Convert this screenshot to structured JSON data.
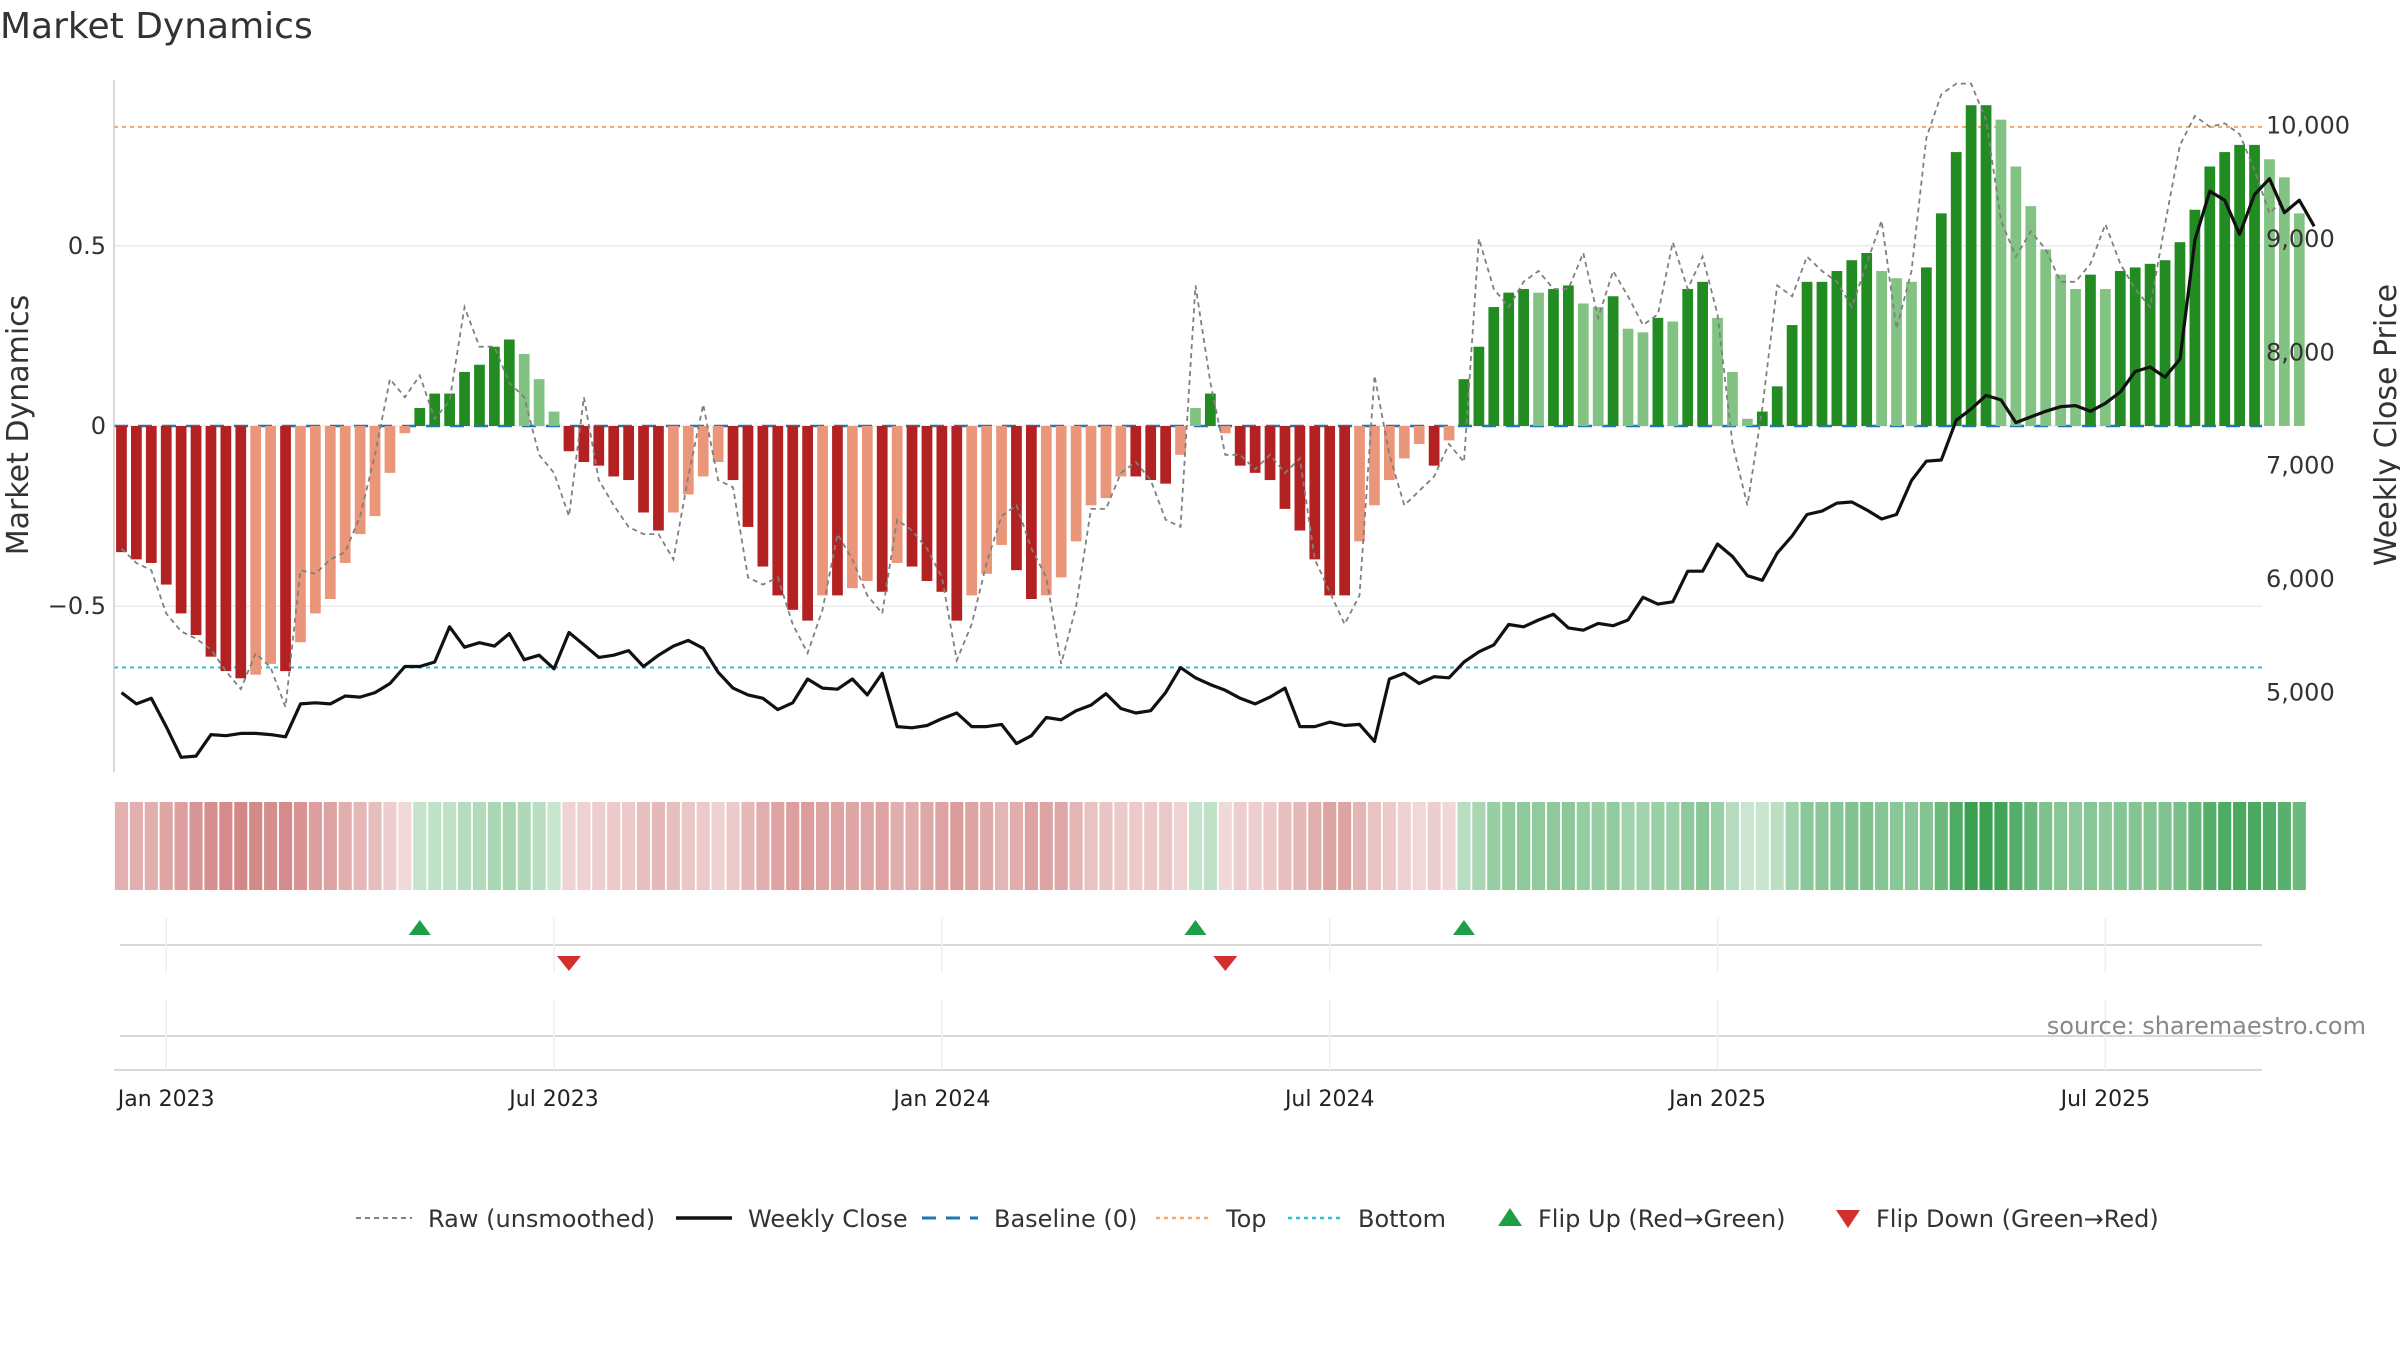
{
  "chart_data": {
    "type": "bar",
    "title": "Market Dynamics",
    "ylabel_left": "Market Dynamics",
    "ylabel_right": "Weekly Close Price",
    "source": "source: sharemaestro.com",
    "y_left": {
      "range": [
        -0.96,
        0.96
      ],
      "ticks": [
        {
          "v": 0.5,
          "label": "0.5"
        },
        {
          "v": 0,
          "label": "0"
        },
        {
          "v": -0.5,
          "label": "−0.5"
        }
      ]
    },
    "y_right": {
      "range": [
        4300,
        10400
      ],
      "ticks": [
        {
          "v": 10000,
          "label": "10,000"
        },
        {
          "v": 9000,
          "label": "9,000"
        },
        {
          "v": 8000,
          "label": "8,000"
        },
        {
          "v": 7000,
          "label": "7,000"
        },
        {
          "v": 6000,
          "label": "6,000"
        },
        {
          "v": 5000,
          "label": "5,000"
        }
      ]
    },
    "x_ticks": [
      {
        "week": 3,
        "label": "Jan 2023"
      },
      {
        "week": 29,
        "label": "Jul 2023"
      },
      {
        "week": 55,
        "label": "Jan 2024"
      },
      {
        "week": 81,
        "label": "Jul 2024"
      },
      {
        "week": 107,
        "label": "Jan 2025"
      },
      {
        "week": 133,
        "label": "Jul 2025"
      }
    ],
    "x_range": [
      -0.5,
      143.5
    ],
    "reference_lines": {
      "top": 0.83,
      "bottom": -0.67,
      "baseline": 0
    },
    "smoothed": [
      -0.35,
      -0.37,
      -0.38,
      -0.44,
      -0.52,
      -0.58,
      -0.64,
      -0.68,
      -0.7,
      -0.69,
      -0.66,
      -0.68,
      -0.6,
      -0.52,
      -0.48,
      -0.38,
      -0.3,
      -0.25,
      -0.13,
      -0.02,
      0.05,
      0.09,
      0.09,
      0.15,
      0.17,
      0.22,
      0.24,
      0.2,
      0.13,
      0.04,
      -0.07,
      -0.1,
      -0.11,
      -0.14,
      -0.15,
      -0.24,
      -0.29,
      -0.24,
      -0.19,
      -0.14,
      -0.1,
      -0.15,
      -0.28,
      -0.39,
      -0.47,
      -0.51,
      -0.54,
      -0.47,
      -0.47,
      -0.45,
      -0.43,
      -0.46,
      -0.38,
      -0.39,
      -0.43,
      -0.46,
      -0.54,
      -0.47,
      -0.41,
      -0.33,
      -0.4,
      -0.48,
      -0.47,
      -0.42,
      -0.32,
      -0.22,
      -0.2,
      -0.14,
      -0.14,
      -0.15,
      -0.16,
      -0.08,
      0.05,
      0.09,
      -0.02,
      -0.11,
      -0.13,
      -0.15,
      -0.23,
      -0.29,
      -0.37,
      -0.47,
      -0.47,
      -0.32,
      -0.22,
      -0.15,
      -0.09,
      -0.05,
      -0.11,
      -0.04,
      0.13,
      0.22,
      0.33,
      0.37,
      0.38,
      0.37,
      0.38,
      0.39,
      0.34,
      0.33,
      0.36,
      0.27,
      0.26,
      0.3,
      0.29,
      0.38,
      0.4,
      0.3,
      0.15,
      0.02,
      0.04,
      0.11,
      0.28,
      0.4,
      0.4,
      0.43,
      0.46,
      0.48,
      0.43,
      0.41,
      0.4,
      0.44,
      0.59,
      0.76,
      0.89,
      0.89,
      0.85,
      0.72,
      0.61,
      0.49,
      0.42,
      0.38,
      0.42,
      0.38,
      0.43,
      0.44,
      0.45,
      0.46,
      0.51,
      0.6,
      0.72,
      0.76,
      0.78,
      0.78,
      0.74,
      0.69,
      0.59
    ],
    "raw": [
      -0.34,
      -0.38,
      -0.4,
      -0.52,
      -0.57,
      -0.59,
      -0.62,
      -0.68,
      -0.73,
      -0.63,
      -0.67,
      -0.78,
      -0.4,
      -0.41,
      -0.37,
      -0.35,
      -0.25,
      -0.08,
      0.13,
      0.08,
      0.14,
      0.02,
      0.07,
      0.33,
      0.22,
      0.22,
      0.12,
      0.08,
      -0.08,
      -0.13,
      -0.25,
      0.08,
      -0.15,
      -0.22,
      -0.28,
      -0.3,
      -0.3,
      -0.37,
      -0.14,
      0.06,
      -0.15,
      -0.17,
      -0.42,
      -0.44,
      -0.42,
      -0.55,
      -0.63,
      -0.51,
      -0.3,
      -0.37,
      -0.47,
      -0.52,
      -0.26,
      -0.29,
      -0.34,
      -0.42,
      -0.65,
      -0.55,
      -0.38,
      -0.25,
      -0.22,
      -0.34,
      -0.42,
      -0.66,
      -0.5,
      -0.23,
      -0.23,
      -0.13,
      -0.1,
      -0.15,
      -0.26,
      -0.28,
      0.39,
      0.12,
      -0.08,
      -0.08,
      -0.12,
      -0.08,
      -0.13,
      -0.09,
      -0.37,
      -0.46,
      -0.55,
      -0.47,
      0.14,
      -0.08,
      -0.22,
      -0.18,
      -0.14,
      -0.05,
      -0.1,
      0.52,
      0.38,
      0.33,
      0.4,
      0.43,
      0.38,
      0.38,
      0.48,
      0.3,
      0.43,
      0.36,
      0.28,
      0.31,
      0.51,
      0.38,
      0.47,
      0.31,
      -0.05,
      -0.22,
      0.05,
      0.39,
      0.36,
      0.47,
      0.43,
      0.4,
      0.33,
      0.45,
      0.57,
      0.27,
      0.43,
      0.8,
      0.92,
      0.95,
      0.95,
      0.85,
      0.57,
      0.47,
      0.54,
      0.49,
      0.4,
      0.4,
      0.45,
      0.56,
      0.45,
      0.38,
      0.33,
      0.56,
      0.78,
      0.86,
      0.83,
      0.84,
      0.81,
      0.71,
      0.59,
      0.63
    ],
    "weekly_close": [
      5000,
      4900,
      4950,
      4700,
      4430,
      4440,
      4630,
      4620,
      4640,
      4640,
      4630,
      4610,
      4900,
      4910,
      4900,
      4970,
      4960,
      5000,
      5080,
      5230,
      5230,
      5270,
      5580,
      5400,
      5440,
      5410,
      5520,
      5290,
      5330,
      5210,
      5530,
      5420,
      5310,
      5330,
      5370,
      5230,
      5330,
      5410,
      5460,
      5390,
      5180,
      5040,
      4980,
      4950,
      4850,
      4910,
      5120,
      5040,
      5030,
      5120,
      4980,
      5170,
      4700,
      4690,
      4710,
      4770,
      4820,
      4700,
      4700,
      4720,
      4550,
      4620,
      4780,
      4760,
      4840,
      4890,
      4990,
      4860,
      4820,
      4840,
      5000,
      5220,
      5130,
      5070,
      5020,
      4950,
      4900,
      4960,
      5040,
      4700,
      4700,
      4740,
      4710,
      4720,
      4570,
      5120,
      5170,
      5080,
      5140,
      5130,
      5270,
      5360,
      5420,
      5600,
      5580,
      5640,
      5690,
      5570,
      5550,
      5610,
      5590,
      5640,
      5840,
      5780,
      5800,
      6070,
      6070,
      6310,
      6200,
      6030,
      5990,
      6230,
      6380,
      6570,
      6600,
      6670,
      6680,
      6610,
      6530,
      6570,
      6870,
      7040,
      7050,
      7400,
      7500,
      7620,
      7580,
      7380,
      7430,
      7480,
      7520,
      7530,
      7480,
      7550,
      7650,
      7830,
      7870,
      7780,
      7940,
      8990,
      9420,
      9340,
      9040,
      9390,
      9530,
      9230,
      9340,
      9110
    ]
  },
  "legend": [
    {
      "key": "raw",
      "label": "Raw (unsmoothed)"
    },
    {
      "key": "close",
      "label": "Weekly Close"
    },
    {
      "key": "baseline",
      "label": "Baseline (0)"
    },
    {
      "key": "top",
      "label": "Top"
    },
    {
      "key": "bottom",
      "label": "Bottom"
    },
    {
      "key": "flip-up",
      "label": "Flip Up (Red→Green)"
    },
    {
      "key": "flip-down",
      "label": "Flip Down (Green→Red)"
    }
  ],
  "colors": {
    "pos_strong": "#228b22",
    "pos_weak": "#82c282",
    "neg_strong": "#b22222",
    "neg_weak": "#e9967a",
    "raw": "#808080",
    "close": "#111111",
    "baseline": "#1f77b4",
    "top": "#f0a868",
    "bottom": "#26bfd4",
    "flip_up": "#1e9e46",
    "flip_down": "#d32f2f"
  }
}
